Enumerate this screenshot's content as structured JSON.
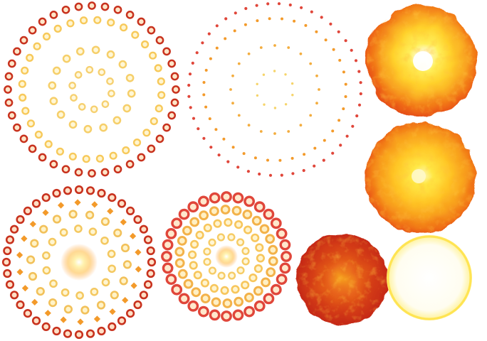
{
  "sheet": {
    "background": "#ffffff",
    "palette": {
      "deep_red": "#c8321e",
      "red": "#e0463a",
      "orange": "#f39a2a",
      "amber": "#f7b73b",
      "yellow": "#ffd84a",
      "pale_yellow": "#fff2a0",
      "white": "#fffdf2"
    },
    "sprites": [
      {
        "name": "ring-burst-sprite-1",
        "kind": "ring-burst",
        "frame": 1,
        "rings": 4
      },
      {
        "name": "dot-scatter-sprite",
        "kind": "dot-scatter",
        "frame": 2,
        "rings": 4
      },
      {
        "name": "fireball-sprite-1",
        "kind": "fireball",
        "frame": 3,
        "glow": "core-highlight"
      },
      {
        "name": "ring-burst-sprite-2",
        "kind": "ring-burst",
        "frame": 4,
        "rings": 4
      },
      {
        "name": "ring-burst-sprite-3",
        "kind": "ring-burst",
        "frame": 5,
        "rings": 5
      },
      {
        "name": "fireball-sprite-2",
        "kind": "fireball",
        "frame": 6,
        "glow": "soft-core"
      },
      {
        "name": "fireball-sprite-3",
        "kind": "fireball",
        "frame": 7,
        "glow": "dark-red"
      },
      {
        "name": "fireball-sprite-4",
        "kind": "fireball",
        "frame": 8,
        "glow": "white-flash"
      }
    ]
  }
}
